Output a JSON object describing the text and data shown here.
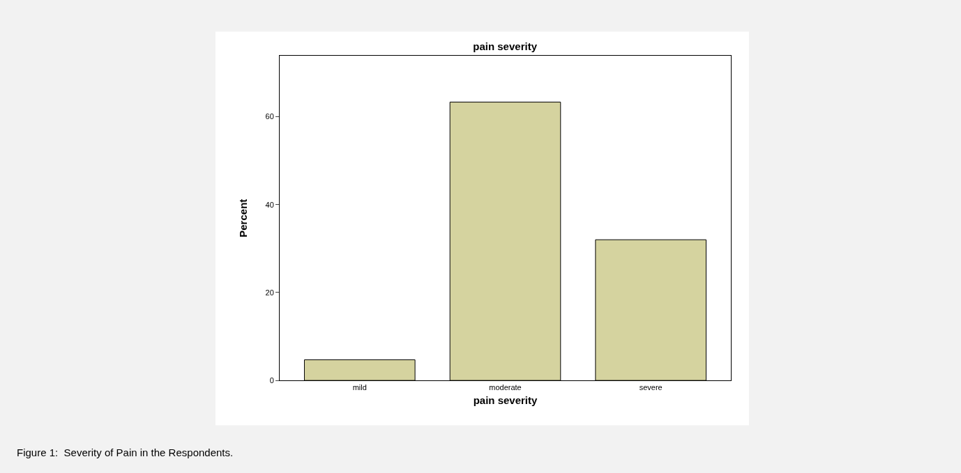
{
  "chart_data": {
    "type": "bar",
    "title": "pain severity",
    "xlabel": "pain severity",
    "ylabel": "Percent",
    "categories": [
      "mild",
      "moderate",
      "severe"
    ],
    "values": [
      4.7,
      63.3,
      32.0
    ],
    "color": "#d5d39f",
    "ylim": [
      0,
      73.8
    ],
    "yticks": [
      0,
      20,
      40,
      60
    ],
    "annotations": [
      "Figure 1:  Severity of Pain in the Respondents."
    ]
  }
}
